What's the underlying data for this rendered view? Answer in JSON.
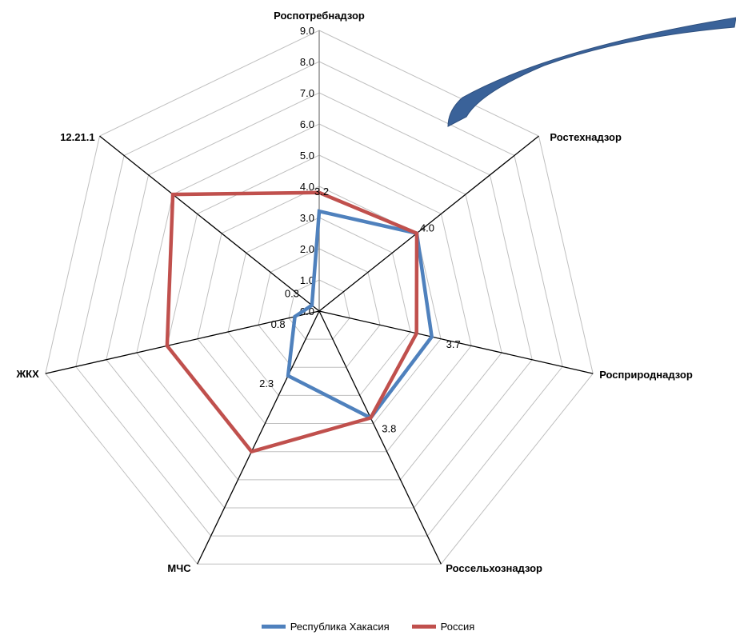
{
  "chart_data": {
    "type": "radar",
    "categories": [
      "Роспотребнадзор",
      "Ростехнадзор",
      "Росприроднадзор",
      "Россельхознадзор",
      "МЧС",
      "ЖКХ",
      "12.21.1"
    ],
    "scale": {
      "min": 0,
      "max": 9,
      "step": 1
    },
    "tick_labels": [
      "0.0",
      "1.0",
      "2.0",
      "3.0",
      "4.0",
      "5.0",
      "6.0",
      "7.0",
      "8.0",
      "9.0"
    ],
    "series": [
      {
        "name": "Республика Хакасия",
        "color": "#4F81BD",
        "values": [
          3.2,
          4.0,
          3.7,
          3.8,
          2.3,
          0.8,
          0.3
        ],
        "data_labels": [
          "3.2",
          "4.0",
          "3.7",
          "3.8",
          "2.3",
          "0.8",
          "0.3"
        ]
      },
      {
        "name": "Россия",
        "color": "#C0504D",
        "values": [
          3.8,
          4.0,
          3.2,
          3.8,
          5.0,
          5.0,
          6.0
        ]
      }
    ],
    "legend_position": "bottom",
    "grid": true
  },
  "annotation": {
    "type": "curved-arrow",
    "color": "#3A6299"
  }
}
